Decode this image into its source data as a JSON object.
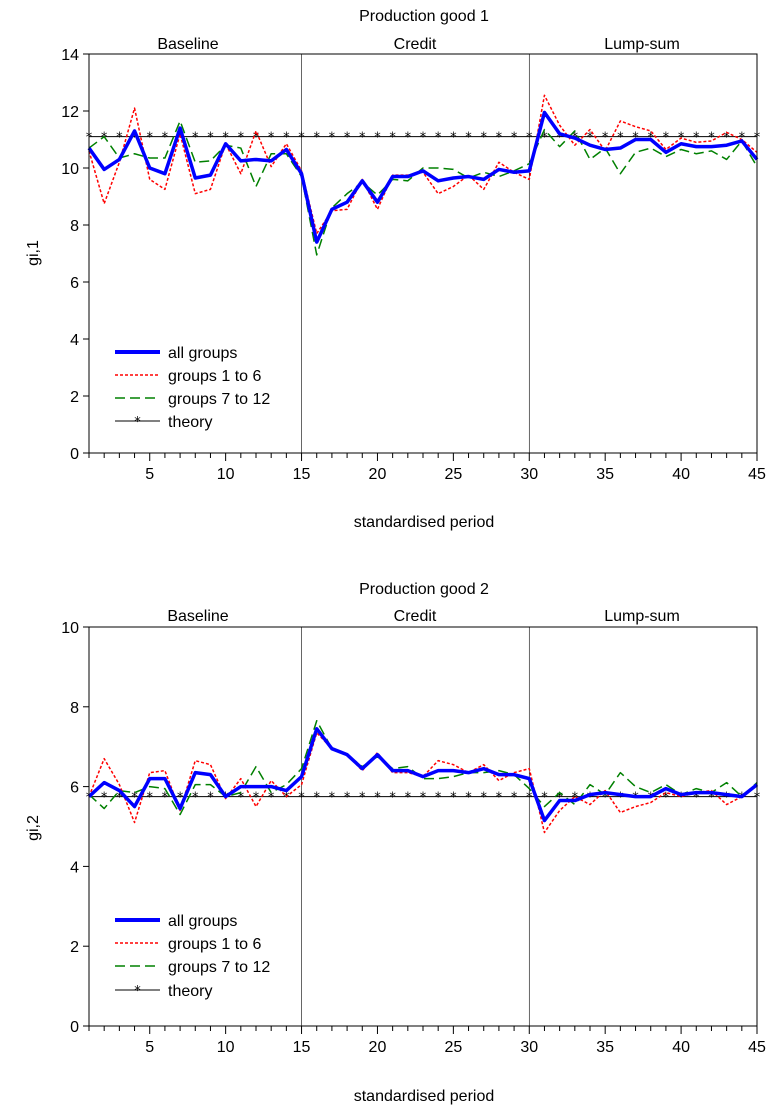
{
  "chart_data": [
    {
      "type": "line",
      "title": "Production good 1",
      "xlabel": "standardised period",
      "ylabel": "gi,1",
      "xlim": [
        1,
        45
      ],
      "ylim": [
        0,
        14
      ],
      "xticks": [
        5,
        10,
        15,
        20,
        25,
        30,
        35,
        40,
        45
      ],
      "yticks": [
        0,
        2,
        4,
        6,
        8,
        10,
        12,
        14
      ],
      "sections": [
        {
          "label": "Baseline",
          "from": 1,
          "to": 15
        },
        {
          "label": "Credit",
          "from": 15,
          "to": 30
        },
        {
          "label": "Lump-sum",
          "from": 30,
          "to": 45
        }
      ],
      "separators": [
        15,
        30
      ],
      "legend_position": "bottom-left",
      "series": [
        {
          "name": "all groups",
          "color": "#0000ff",
          "style": "solid-thick",
          "values": [
            10.7,
            9.95,
            10.3,
            11.3,
            10.0,
            9.8,
            11.4,
            9.65,
            9.75,
            10.85,
            10.25,
            10.3,
            10.25,
            10.65,
            9.8,
            7.4,
            8.55,
            8.8,
            9.55,
            8.8,
            9.7,
            9.7,
            9.9,
            9.55,
            9.65,
            9.7,
            9.6,
            9.95,
            9.85,
            9.9,
            11.95,
            11.2,
            11.05,
            10.8,
            10.65,
            10.7,
            11.0,
            11.0,
            10.55,
            10.85,
            10.75,
            10.75,
            10.8,
            10.95,
            10.3
          ]
        },
        {
          "name": "groups 1 to 6",
          "color": "#ff0000",
          "style": "dotted",
          "values": [
            10.6,
            8.75,
            10.2,
            12.1,
            9.6,
            9.25,
            11.2,
            9.1,
            9.25,
            10.85,
            9.8,
            11.3,
            10.05,
            10.85,
            9.9,
            7.7,
            8.5,
            8.55,
            9.6,
            8.55,
            9.75,
            9.75,
            9.85,
            9.1,
            9.35,
            9.75,
            9.25,
            10.2,
            9.85,
            9.6,
            12.55,
            11.5,
            10.8,
            11.35,
            10.6,
            11.65,
            11.45,
            11.3,
            10.65,
            11.05,
            10.9,
            10.95,
            11.25,
            11.0,
            10.55
          ]
        },
        {
          "name": "groups 7 to 12",
          "color": "#008000",
          "style": "dashed",
          "values": [
            10.7,
            11.1,
            10.35,
            10.5,
            10.35,
            10.35,
            11.65,
            10.2,
            10.25,
            10.8,
            10.7,
            9.35,
            10.5,
            10.5,
            9.7,
            6.95,
            8.6,
            9.1,
            9.5,
            9.05,
            9.6,
            9.55,
            10.0,
            10.0,
            9.95,
            9.65,
            9.85,
            9.7,
            9.9,
            10.15,
            11.35,
            10.75,
            11.3,
            10.3,
            10.7,
            9.8,
            10.55,
            10.7,
            10.4,
            10.65,
            10.5,
            10.6,
            10.3,
            10.95,
            10.05
          ]
        },
        {
          "name": "theory",
          "color": "#000000",
          "style": "solid-star",
          "values": [
            11.1,
            11.1,
            11.1,
            11.1,
            11.1,
            11.1,
            11.1,
            11.1,
            11.1,
            11.1,
            11.1,
            11.1,
            11.1,
            11.1,
            11.1,
            11.1,
            11.1,
            11.1,
            11.1,
            11.1,
            11.1,
            11.1,
            11.1,
            11.1,
            11.1,
            11.1,
            11.1,
            11.1,
            11.1,
            11.1,
            11.1,
            11.1,
            11.1,
            11.1,
            11.1,
            11.1,
            11.1,
            11.1,
            11.1,
            11.1,
            11.1,
            11.1,
            11.1,
            11.1,
            11.1
          ]
        }
      ]
    },
    {
      "type": "line",
      "title": "Production good 2",
      "xlabel": "standardised period",
      "ylabel": "gi,2",
      "xlim": [
        1,
        45
      ],
      "ylim": [
        0,
        10
      ],
      "xticks": [
        5,
        10,
        15,
        20,
        25,
        30,
        35,
        40,
        45
      ],
      "yticks": [
        0,
        2,
        4,
        6,
        8,
        10
      ],
      "sections": [
        {
          "label": "Baseline",
          "from": 1,
          "to": 15
        },
        {
          "label": "Credit",
          "from": 15,
          "to": 30
        },
        {
          "label": "Lump-sum",
          "from": 30,
          "to": 45
        }
      ],
      "separators": [
        15,
        30
      ],
      "legend_position": "bottom-left",
      "series": [
        {
          "name": "all groups",
          "color": "#0000ff",
          "style": "solid-thick",
          "values": [
            5.75,
            6.1,
            5.9,
            5.5,
            6.2,
            6.2,
            5.45,
            6.35,
            6.3,
            5.75,
            6.0,
            6.0,
            6.0,
            5.9,
            6.25,
            7.45,
            6.95,
            6.8,
            6.45,
            6.8,
            6.4,
            6.4,
            6.25,
            6.4,
            6.4,
            6.35,
            6.45,
            6.3,
            6.3,
            6.2,
            5.15,
            5.65,
            5.65,
            5.8,
            5.85,
            5.8,
            5.75,
            5.75,
            5.95,
            5.8,
            5.85,
            5.85,
            5.8,
            5.75,
            6.05
          ]
        },
        {
          "name": "groups 1 to 6",
          "color": "#ff0000",
          "style": "dotted",
          "values": [
            5.75,
            6.7,
            6.05,
            5.1,
            6.35,
            6.4,
            5.4,
            6.65,
            6.55,
            5.7,
            6.2,
            5.5,
            6.15,
            5.75,
            6.05,
            7.35,
            6.95,
            6.8,
            6.4,
            6.85,
            6.35,
            6.35,
            6.25,
            6.65,
            6.55,
            6.35,
            6.55,
            6.15,
            6.35,
            6.45,
            4.85,
            5.4,
            5.75,
            5.55,
            5.9,
            5.35,
            5.5,
            5.6,
            5.85,
            5.75,
            5.85,
            5.9,
            5.55,
            5.75,
            6.05
          ]
        },
        {
          "name": "groups 7 to 12",
          "color": "#008000",
          "style": "dashed",
          "values": [
            5.8,
            5.45,
            5.9,
            5.85,
            6.0,
            5.95,
            5.3,
            6.05,
            6.05,
            5.75,
            5.85,
            6.5,
            5.85,
            6.05,
            6.45,
            7.65,
            6.95,
            6.8,
            6.5,
            6.75,
            6.45,
            6.5,
            6.2,
            6.2,
            6.25,
            6.35,
            6.35,
            6.4,
            6.3,
            5.95,
            5.5,
            5.85,
            5.55,
            6.05,
            5.8,
            6.35,
            6.0,
            5.85,
            6.05,
            5.8,
            5.95,
            5.85,
            6.1,
            5.75,
            6.1
          ]
        },
        {
          "name": "theory",
          "color": "#000000",
          "style": "solid-star",
          "values": [
            5.75,
            5.75,
            5.75,
            5.75,
            5.75,
            5.75,
            5.75,
            5.75,
            5.75,
            5.75,
            5.75,
            5.75,
            5.75,
            5.75,
            5.75,
            5.75,
            5.75,
            5.75,
            5.75,
            5.75,
            5.75,
            5.75,
            5.75,
            5.75,
            5.75,
            5.75,
            5.75,
            5.75,
            5.75,
            5.75,
            5.75,
            5.75,
            5.75,
            5.75,
            5.75,
            5.75,
            5.75,
            5.75,
            5.75,
            5.75,
            5.75,
            5.75,
            5.75,
            5.75,
            5.75
          ]
        }
      ]
    }
  ]
}
